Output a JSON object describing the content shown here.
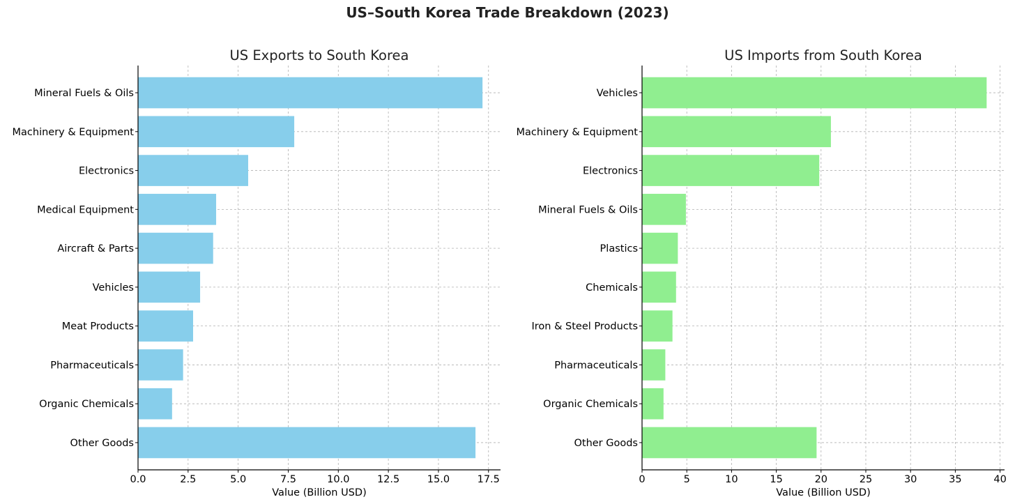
{
  "suptitle": "US–South Korea Trade Breakdown (2023)",
  "chart_data": [
    {
      "type": "bar",
      "orientation": "horizontal",
      "title": "US Exports to South Korea",
      "xlabel": "Value (Billion USD)",
      "ylabel": "",
      "categories": [
        "Mineral Fuels & Oils",
        "Machinery & Equipment",
        "Electronics",
        "Medical Equipment",
        "Aircraft & Parts",
        "Vehicles",
        "Meat Products",
        "Pharmaceuticals",
        "Organic Chemicals",
        "Other Goods"
      ],
      "values": [
        17.2,
        7.8,
        5.5,
        3.9,
        3.75,
        3.1,
        2.75,
        2.25,
        1.7,
        16.85
      ],
      "xlim": [
        0,
        18.1
      ],
      "xticks": [
        0.0,
        2.5,
        5.0,
        7.5,
        10.0,
        12.5,
        15.0,
        17.5
      ],
      "xtick_labels": [
        "0.0",
        "2.5",
        "5.0",
        "7.5",
        "10.0",
        "12.5",
        "15.0",
        "17.5"
      ],
      "bar_color": "#87CEEB",
      "grid": true
    },
    {
      "type": "bar",
      "orientation": "horizontal",
      "title": "US Imports from South Korea",
      "xlabel": "Value (Billion USD)",
      "ylabel": "",
      "categories": [
        "Vehicles",
        "Machinery & Equipment",
        "Electronics",
        "Mineral Fuels & Oils",
        "Plastics",
        "Chemicals",
        "Iron & Steel Products",
        "Pharmaceuticals",
        "Organic Chemicals",
        "Other Goods"
      ],
      "values": [
        38.5,
        21.1,
        19.8,
        4.9,
        4.0,
        3.8,
        3.4,
        2.6,
        2.4,
        19.5
      ],
      "xlim": [
        0,
        40.5
      ],
      "xticks": [
        0,
        5,
        10,
        15,
        20,
        25,
        30,
        35,
        40
      ],
      "xtick_labels": [
        "0",
        "5",
        "10",
        "15",
        "20",
        "25",
        "30",
        "35",
        "40"
      ],
      "bar_color": "#90EE90",
      "grid": true
    }
  ]
}
